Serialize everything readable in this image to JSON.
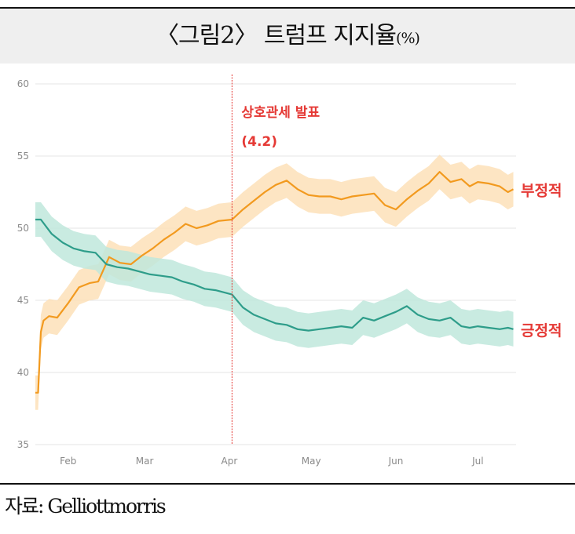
{
  "title": {
    "main": "〈그림2〉 트럼프 지지율",
    "unit": "(%)"
  },
  "source": "자료: Gelliottmorris",
  "colors": {
    "unfavorable": "#f29a1f",
    "unfavorable_band": "#fde1b8",
    "favorable": "#2e9d8a",
    "favorable_band": "#bfe8dc",
    "event": "#e53935",
    "grid": "#e4e4e4",
    "tick": "#8a8a8a"
  },
  "chart_data": {
    "type": "line",
    "title": "〈그림2〉 트럼프 지지율(%)",
    "xlabel": "",
    "ylabel": "",
    "ylim": [
      35,
      60
    ],
    "yticks": [
      35,
      40,
      45,
      50,
      55,
      60
    ],
    "xlim": [
      "2025-01-20",
      "2025-07-15"
    ],
    "xticks": [
      {
        "label": "Feb",
        "date": "2025-02-01"
      },
      {
        "label": "Mar",
        "date": "2025-03-01"
      },
      {
        "label": "Apr",
        "date": "2025-04-01"
      },
      {
        "label": "May",
        "date": "2025-05-01"
      },
      {
        "label": "Jun",
        "date": "2025-06-01"
      },
      {
        "label": "Jul",
        "date": "2025-07-01"
      }
    ],
    "grid": true,
    "annotation": {
      "date": "2025-04-02",
      "line1": "상호관세 발표",
      "line2": "(4.2)"
    },
    "series": [
      {
        "name": "부정적",
        "band_width": 1.2,
        "x": [
          "2025-01-20",
          "2025-01-21",
          "2025-01-22",
          "2025-01-23",
          "2025-01-25",
          "2025-01-28",
          "2025-02-01",
          "2025-02-05",
          "2025-02-09",
          "2025-02-12",
          "2025-02-16",
          "2025-02-20",
          "2025-02-24",
          "2025-02-28",
          "2025-03-04",
          "2025-03-08",
          "2025-03-12",
          "2025-03-16",
          "2025-03-20",
          "2025-03-24",
          "2025-03-28",
          "2025-04-02",
          "2025-04-06",
          "2025-04-10",
          "2025-04-14",
          "2025-04-18",
          "2025-04-22",
          "2025-04-26",
          "2025-04-30",
          "2025-05-04",
          "2025-05-08",
          "2025-05-12",
          "2025-05-16",
          "2025-05-20",
          "2025-05-24",
          "2025-05-28",
          "2025-06-01",
          "2025-06-05",
          "2025-06-09",
          "2025-06-13",
          "2025-06-17",
          "2025-06-21",
          "2025-06-25",
          "2025-06-28",
          "2025-07-01",
          "2025-07-05",
          "2025-07-09",
          "2025-07-12",
          "2025-07-14"
        ],
        "y": [
          38.6,
          38.6,
          42.8,
          43.6,
          43.9,
          43.8,
          44.8,
          45.9,
          46.2,
          46.3,
          48.0,
          47.6,
          47.5,
          48.1,
          48.6,
          49.2,
          49.7,
          50.3,
          50.0,
          50.2,
          50.5,
          50.6,
          51.3,
          51.9,
          52.5,
          53.0,
          53.3,
          52.7,
          52.3,
          52.2,
          52.2,
          52.0,
          52.2,
          52.3,
          52.4,
          51.6,
          51.3,
          52.0,
          52.6,
          53.1,
          53.9,
          53.2,
          53.4,
          52.9,
          53.2,
          53.1,
          52.9,
          52.5,
          52.7
        ]
      },
      {
        "name": "긍정적",
        "band_width": 1.2,
        "x": [
          "2025-01-20",
          "2025-01-22",
          "2025-01-26",
          "2025-01-30",
          "2025-02-03",
          "2025-02-07",
          "2025-02-11",
          "2025-02-15",
          "2025-02-19",
          "2025-02-23",
          "2025-02-27",
          "2025-03-03",
          "2025-03-07",
          "2025-03-11",
          "2025-03-15",
          "2025-03-19",
          "2025-03-23",
          "2025-03-27",
          "2025-04-02",
          "2025-04-06",
          "2025-04-10",
          "2025-04-14",
          "2025-04-18",
          "2025-04-22",
          "2025-04-26",
          "2025-04-30",
          "2025-05-04",
          "2025-05-08",
          "2025-05-12",
          "2025-05-16",
          "2025-05-20",
          "2025-05-24",
          "2025-05-28",
          "2025-06-01",
          "2025-06-05",
          "2025-06-09",
          "2025-06-13",
          "2025-06-17",
          "2025-06-21",
          "2025-06-25",
          "2025-06-28",
          "2025-07-01",
          "2025-07-05",
          "2025-07-09",
          "2025-07-12",
          "2025-07-14"
        ],
        "y": [
          50.6,
          50.6,
          49.6,
          49.0,
          48.6,
          48.4,
          48.3,
          47.5,
          47.3,
          47.2,
          47.0,
          46.8,
          46.7,
          46.6,
          46.3,
          46.1,
          45.8,
          45.7,
          45.4,
          44.5,
          44.0,
          43.7,
          43.4,
          43.3,
          43.0,
          42.9,
          43.0,
          43.1,
          43.2,
          43.1,
          43.8,
          43.6,
          43.9,
          44.2,
          44.6,
          44.0,
          43.7,
          43.6,
          43.8,
          43.2,
          43.1,
          43.2,
          43.1,
          43.0,
          43.1,
          43.0
        ]
      }
    ]
  }
}
